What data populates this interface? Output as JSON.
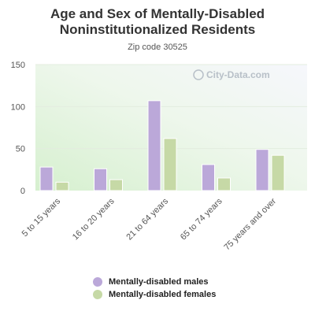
{
  "chart_data": {
    "type": "bar",
    "title_line1": "Age and Sex of Mentally-Disabled",
    "title_line2": "Noninstitutionalized Residents",
    "subtitle": "Zip code 30525",
    "categories": [
      "5 to 15 years",
      "16 to 20 years",
      "21 to 64 years",
      "65 to 74 years",
      "75 years and over"
    ],
    "series": [
      {
        "name": "Mentally-disabled males",
        "values": [
          28,
          26,
          107,
          31,
          49
        ],
        "color": "#bba8d9"
      },
      {
        "name": "Mentally-disabled females",
        "values": [
          10,
          13,
          62,
          15,
          42
        ],
        "color": "#c6d9a6"
      }
    ],
    "ylim": [
      0,
      150
    ],
    "yticks": [
      0,
      50,
      100,
      150
    ],
    "grid": true,
    "legend_position": "bottom"
  },
  "watermark": "City-Data.com"
}
